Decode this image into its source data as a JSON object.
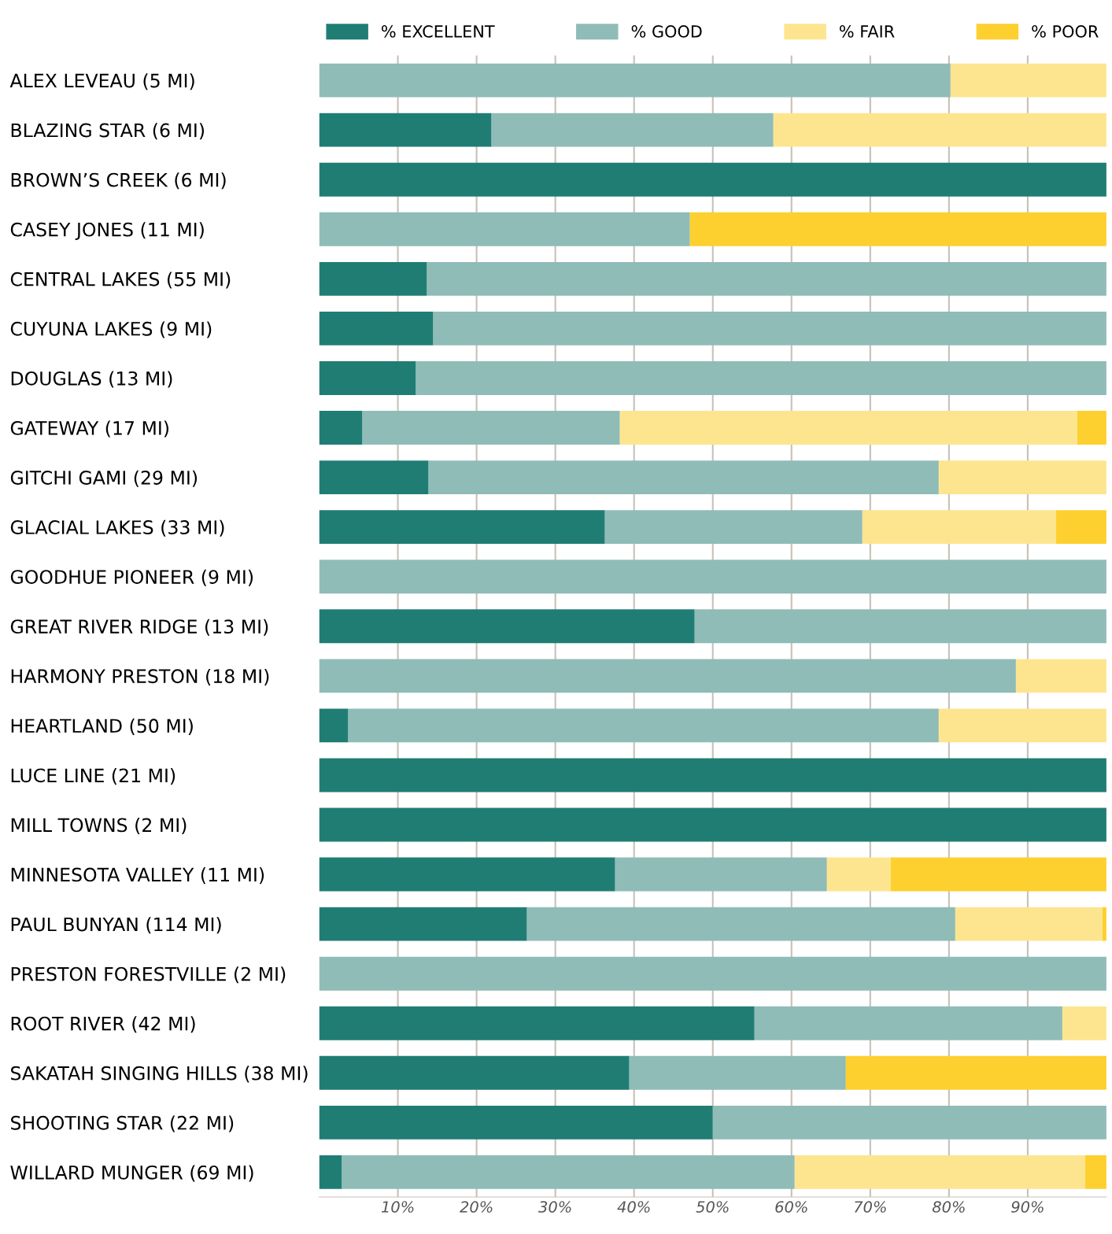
{
  "chart_data": {
    "type": "bar",
    "orientation": "horizontal",
    "stacked": true,
    "legend": "top",
    "grid": "x",
    "categories": [
      "ALEX LEVEAU (5 MI)",
      "BLAZING STAR (6 MI)",
      "BROWN’S CREEK (6 MI)",
      "CASEY JONES (11 MI)",
      "CENTRAL LAKES (55 MI)",
      "CUYUNA LAKES (9 MI)",
      "DOUGLAS (13 MI)",
      "GATEWAY (17 MI)",
      "GITCHI GAMI (29 MI)",
      "GLACIAL LAKES (33 MI)",
      "GOODHUE PIONEER (9 MI)",
      "GREAT RIVER RIDGE (13 MI)",
      "HARMONY PRESTON (18 MI)",
      "HEARTLAND (50 MI)",
      "LUCE LINE (21 MI)",
      "MILL TOWNS (2 MI)",
      "MINNESOTA VALLEY (11 MI)",
      "PAUL BUNYAN (114 MI)",
      "PRESTON FORESTVILLE (2 MI)",
      "ROOT RIVER (42 MI)",
      "SAKATAH SINGING HILLS (38 MI)",
      "SHOOTING STAR (22 MI)",
      "WILLARD MUNGER (69 MI)"
    ],
    "series": [
      {
        "name": "% EXCELLENT",
        "color": "#207d74",
        "values": [
          0,
          21.9,
          100,
          0,
          13.7,
          14.5,
          12.3,
          5.5,
          13.9,
          36.3,
          0,
          47.7,
          0,
          3.7,
          100,
          100,
          37.6,
          26.4,
          0,
          55.3,
          39.4,
          50,
          2.9
        ]
      },
      {
        "name": "% GOOD",
        "color": "#8fbcb7",
        "values": [
          80.2,
          35.8,
          0,
          47.1,
          86.3,
          85.5,
          87.7,
          32.7,
          64.8,
          32.7,
          100,
          52.3,
          88.5,
          75.0,
          0,
          0,
          26.9,
          54.4,
          100,
          39.1,
          27.5,
          50,
          57.5
        ]
      },
      {
        "name": "% FAIR",
        "color": "#fde590",
        "values": [
          19.8,
          42.3,
          0,
          0,
          0,
          0,
          0,
          58.1,
          21.3,
          24.6,
          0,
          0,
          11.5,
          21.3,
          0,
          0,
          8.1,
          18.7,
          0,
          5.6,
          0,
          0,
          36.9
        ]
      },
      {
        "name": "% POOR",
        "color": "#fdd02f",
        "values": [
          0,
          0,
          0,
          52.9,
          0,
          0,
          0,
          3.7,
          0,
          6.4,
          0,
          0,
          0,
          0,
          0,
          0,
          27.4,
          0.5,
          0,
          0,
          33.1,
          0,
          2.7
        ]
      }
    ],
    "xlim": [
      0,
      100
    ],
    "xticks": [
      {
        "value": 10,
        "label": "10%"
      },
      {
        "value": 20,
        "label": "20%"
      },
      {
        "value": 30,
        "label": "30%"
      },
      {
        "value": 40,
        "label": "40%"
      },
      {
        "value": 50,
        "label": "50%"
      },
      {
        "value": 60,
        "label": "60%"
      },
      {
        "value": 70,
        "label": "70%"
      },
      {
        "value": 80,
        "label": "80%"
      },
      {
        "value": 90,
        "label": "90%"
      }
    ]
  }
}
